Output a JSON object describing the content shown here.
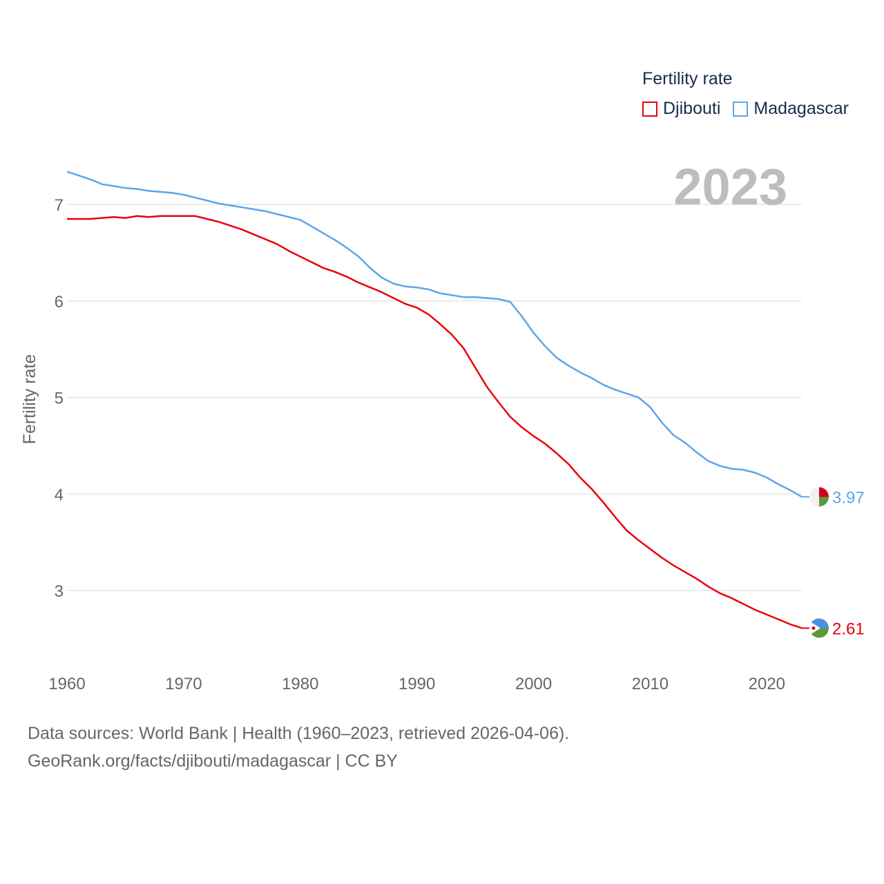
{
  "chart_data": {
    "type": "line",
    "legend_title": "Fertility rate",
    "ylabel": "Fertility rate",
    "xlabel": "",
    "xlim": [
      1960,
      2023
    ],
    "ylim": [
      2.4,
      7.5
    ],
    "x_ticks": [
      1960,
      1970,
      1980,
      1990,
      2000,
      2010,
      2020
    ],
    "y_ticks": [
      3,
      4,
      5,
      6,
      7
    ],
    "current_year": "2023",
    "x": [
      1960,
      1961,
      1962,
      1963,
      1964,
      1965,
      1966,
      1967,
      1968,
      1969,
      1970,
      1971,
      1972,
      1973,
      1974,
      1975,
      1976,
      1977,
      1978,
      1979,
      1980,
      1981,
      1982,
      1983,
      1984,
      1985,
      1986,
      1987,
      1988,
      1989,
      1990,
      1991,
      1992,
      1993,
      1994,
      1995,
      1996,
      1997,
      1998,
      1999,
      2000,
      2001,
      2002,
      2003,
      2004,
      2005,
      2006,
      2007,
      2008,
      2009,
      2010,
      2011,
      2012,
      2013,
      2014,
      2015,
      2016,
      2017,
      2018,
      2019,
      2020,
      2021,
      2022,
      2023
    ],
    "series": [
      {
        "name": "Djibouti",
        "color": "#e8000b",
        "end_label": "2.61",
        "values": [
          6.85,
          6.85,
          6.85,
          6.86,
          6.87,
          6.86,
          6.88,
          6.87,
          6.88,
          6.88,
          6.88,
          6.88,
          6.85,
          6.82,
          6.78,
          6.74,
          6.69,
          6.64,
          6.59,
          6.52,
          6.46,
          6.4,
          6.34,
          6.3,
          6.25,
          6.19,
          6.14,
          6.09,
          6.03,
          5.97,
          5.93,
          5.86,
          5.76,
          5.65,
          5.51,
          5.31,
          5.11,
          4.95,
          4.8,
          4.69,
          4.6,
          4.52,
          4.42,
          4.31,
          4.17,
          4.05,
          3.91,
          3.76,
          3.62,
          3.52,
          3.43,
          3.34,
          3.26,
          3.19,
          3.12,
          3.04,
          2.97,
          2.92,
          2.86,
          2.8,
          2.75,
          2.7,
          2.65,
          2.61
        ]
      },
      {
        "name": "Madagascar",
        "color": "#5da5e8",
        "end_label": "3.97",
        "values": [
          7.34,
          7.3,
          7.26,
          7.21,
          7.19,
          7.17,
          7.16,
          7.14,
          7.13,
          7.12,
          7.1,
          7.07,
          7.04,
          7.01,
          6.99,
          6.97,
          6.95,
          6.93,
          6.9,
          6.87,
          6.84,
          6.77,
          6.7,
          6.63,
          6.55,
          6.46,
          6.34,
          6.24,
          6.18,
          6.15,
          6.14,
          6.12,
          6.08,
          6.06,
          6.04,
          6.04,
          6.03,
          6.02,
          5.99,
          5.84,
          5.67,
          5.53,
          5.41,
          5.33,
          5.26,
          5.2,
          5.13,
          5.08,
          5.04,
          5.0,
          4.9,
          4.74,
          4.61,
          4.53,
          4.43,
          4.34,
          4.29,
          4.26,
          4.25,
          4.22,
          4.17,
          4.1,
          4.04,
          3.97
        ]
      }
    ]
  },
  "footer": {
    "line1": "Data sources: World Bank | Health (1960–2023, retrieved 2026-04-06).",
    "line2": "GeoRank.org/facts/djibouti/madagascar | CC BY"
  }
}
